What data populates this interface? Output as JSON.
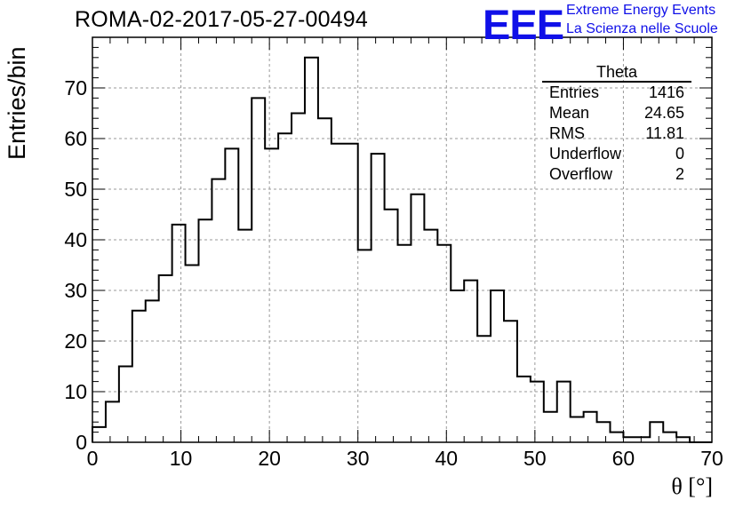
{
  "header": {
    "run_id": "ROMA-02-2017-05-27-00494"
  },
  "logo": {
    "mark": "EEE",
    "line1": "Extreme Energy Events",
    "line2": "La Scienza nelle Scuole",
    "color": "#1010e8"
  },
  "stats_box": {
    "title": "Theta",
    "rows": [
      {
        "key": "Entries",
        "value": "1416"
      },
      {
        "key": "Mean",
        "value": "24.65"
      },
      {
        "key": "RMS",
        "value": "11.81"
      },
      {
        "key": "Underflow",
        "value": "0"
      },
      {
        "key": "Overflow",
        "value": "2"
      }
    ]
  },
  "chart_data": {
    "type": "histogram",
    "title": "ROMA-02-2017-05-27-00494",
    "xlabel": "θ [°]",
    "ylabel": "Entries/bin",
    "xlim": [
      0,
      70
    ],
    "ylim": [
      0,
      80
    ],
    "bin_width": 1.5,
    "x_ticks": [
      0,
      10,
      20,
      30,
      40,
      50,
      60,
      70
    ],
    "y_ticks": [
      0,
      10,
      20,
      30,
      40,
      50,
      60,
      70
    ],
    "grid": true,
    "series": [
      {
        "values": [
          3,
          8,
          15,
          26,
          28,
          33,
          43,
          35,
          44,
          52,
          58,
          42,
          68,
          58,
          61,
          65,
          76,
          64,
          59,
          59,
          38,
          57,
          46,
          39,
          49,
          42,
          39,
          30,
          32,
          21,
          30,
          24,
          13,
          12,
          6,
          12,
          5,
          6,
          4,
          2,
          1,
          1,
          4,
          2,
          1,
          0,
          0
        ]
      }
    ]
  }
}
